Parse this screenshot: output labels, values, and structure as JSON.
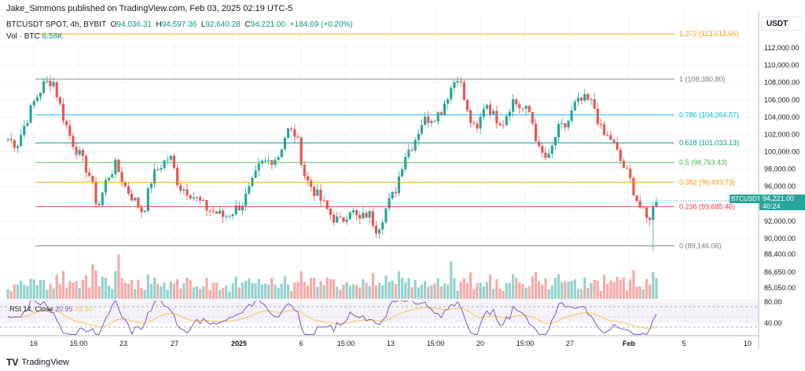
{
  "header": {
    "publisher": "Jake_Simmons published on TradingView.com, Feb 03, 2025 02:19 UTC-5"
  },
  "legend": {
    "symbol": "BTCUSDT SPOT, 4h, BYBIT",
    "o_label": "O",
    "open": "94,036.31",
    "h_label": "H",
    "high": "94,597.36",
    "l_label": "L",
    "low": "92,640.28",
    "c_label": "C",
    "close": "94,221.00",
    "change": "+184.69 (+0.20%)",
    "vol_label": "Vol · BTC",
    "vol_value": "6.58K"
  },
  "price_axis": {
    "currency": "USDT",
    "last_price": "94,221.00",
    "countdown": "40:24",
    "ticker_tag": "BTCUSDT"
  },
  "rsi": {
    "label": "RSI 14, Close",
    "value": "20.95",
    "ma_value": "33.30"
  },
  "footer": {
    "logo_text": "TradingView"
  },
  "colors": {
    "up": "#26a69a",
    "down": "#ef5350",
    "rsi": "#7e57c2",
    "rsi_ma": "#f7c948"
  },
  "chart_data": {
    "type": "candlestick",
    "title": "BTCUSDT SPOT, 4h, BYBIT",
    "ylim": [
      87000,
      115000
    ],
    "y_ticks": [
      "112,000.00",
      "110,000.00",
      "108,000.00",
      "106,000.00",
      "104,000.00",
      "102,000.00",
      "100,000.00",
      "98,000.00",
      "96,000.00",
      "92,000.00",
      "90,000.00"
    ],
    "y_tick_values": [
      112000,
      110000,
      108000,
      106000,
      104000,
      102000,
      100000,
      98000,
      96000,
      92000,
      90000
    ],
    "volume_ticks": [
      "88,400.00",
      "86,650.00",
      "85,050.00"
    ],
    "rsi_ticks": [
      "80.00",
      "40.00"
    ],
    "x_ticks": [
      "16",
      "15:00",
      "23",
      "27",
      "2025",
      "6",
      "15:00",
      "13",
      "15:00",
      "20",
      "15:00",
      "27",
      "Feb",
      "5",
      "10"
    ],
    "fib_levels": [
      {
        "label": "1.272 (113,612.65)",
        "price": 113612.65,
        "color": "#ff9800"
      },
      {
        "label": "1 (108,380.80)",
        "price": 108380.8,
        "color": "#787b86"
      },
      {
        "label": "0.786 (104,264.57)",
        "price": 104264.57,
        "color": "#00bcd4"
      },
      {
        "label": "0.618 (101,033.13)",
        "price": 101033.13,
        "color": "#089981"
      },
      {
        "label": "0.5 (98,763.43)",
        "price": 98763.43,
        "color": "#4caf50"
      },
      {
        "label": "0.382 (96,493.73)",
        "price": 96493.73,
        "color": "#ff9800"
      },
      {
        "label": "0.236 (93,685.46)",
        "price": 93685.46,
        "color": "#f23645"
      },
      {
        "label": "0 (89,146.06)",
        "price": 89146.06,
        "color": "#787b86"
      }
    ],
    "price_path_approx": [
      101500,
      100800,
      103500,
      106000,
      107800,
      108300,
      104500,
      101500,
      99500,
      97500,
      93500,
      97000,
      98500,
      96000,
      94500,
      93000,
      97000,
      98500,
      99500,
      96000,
      95500,
      94500,
      93500,
      93000,
      92500,
      93200,
      94000,
      96000,
      98500,
      99000,
      99500,
      102500,
      102000,
      97000,
      95500,
      94000,
      92500,
      91800,
      93500,
      92000,
      93000,
      91000,
      93500,
      95500,
      99500,
      101000,
      103500,
      104000,
      104500,
      107000,
      109000,
      104500,
      102000,
      106000,
      104000,
      103500,
      106000,
      105000,
      104500,
      100000,
      99000,
      102500,
      103000,
      105500,
      106000,
      105500,
      102000,
      101500,
      99000,
      97000,
      94000,
      92000,
      94221
    ]
  }
}
